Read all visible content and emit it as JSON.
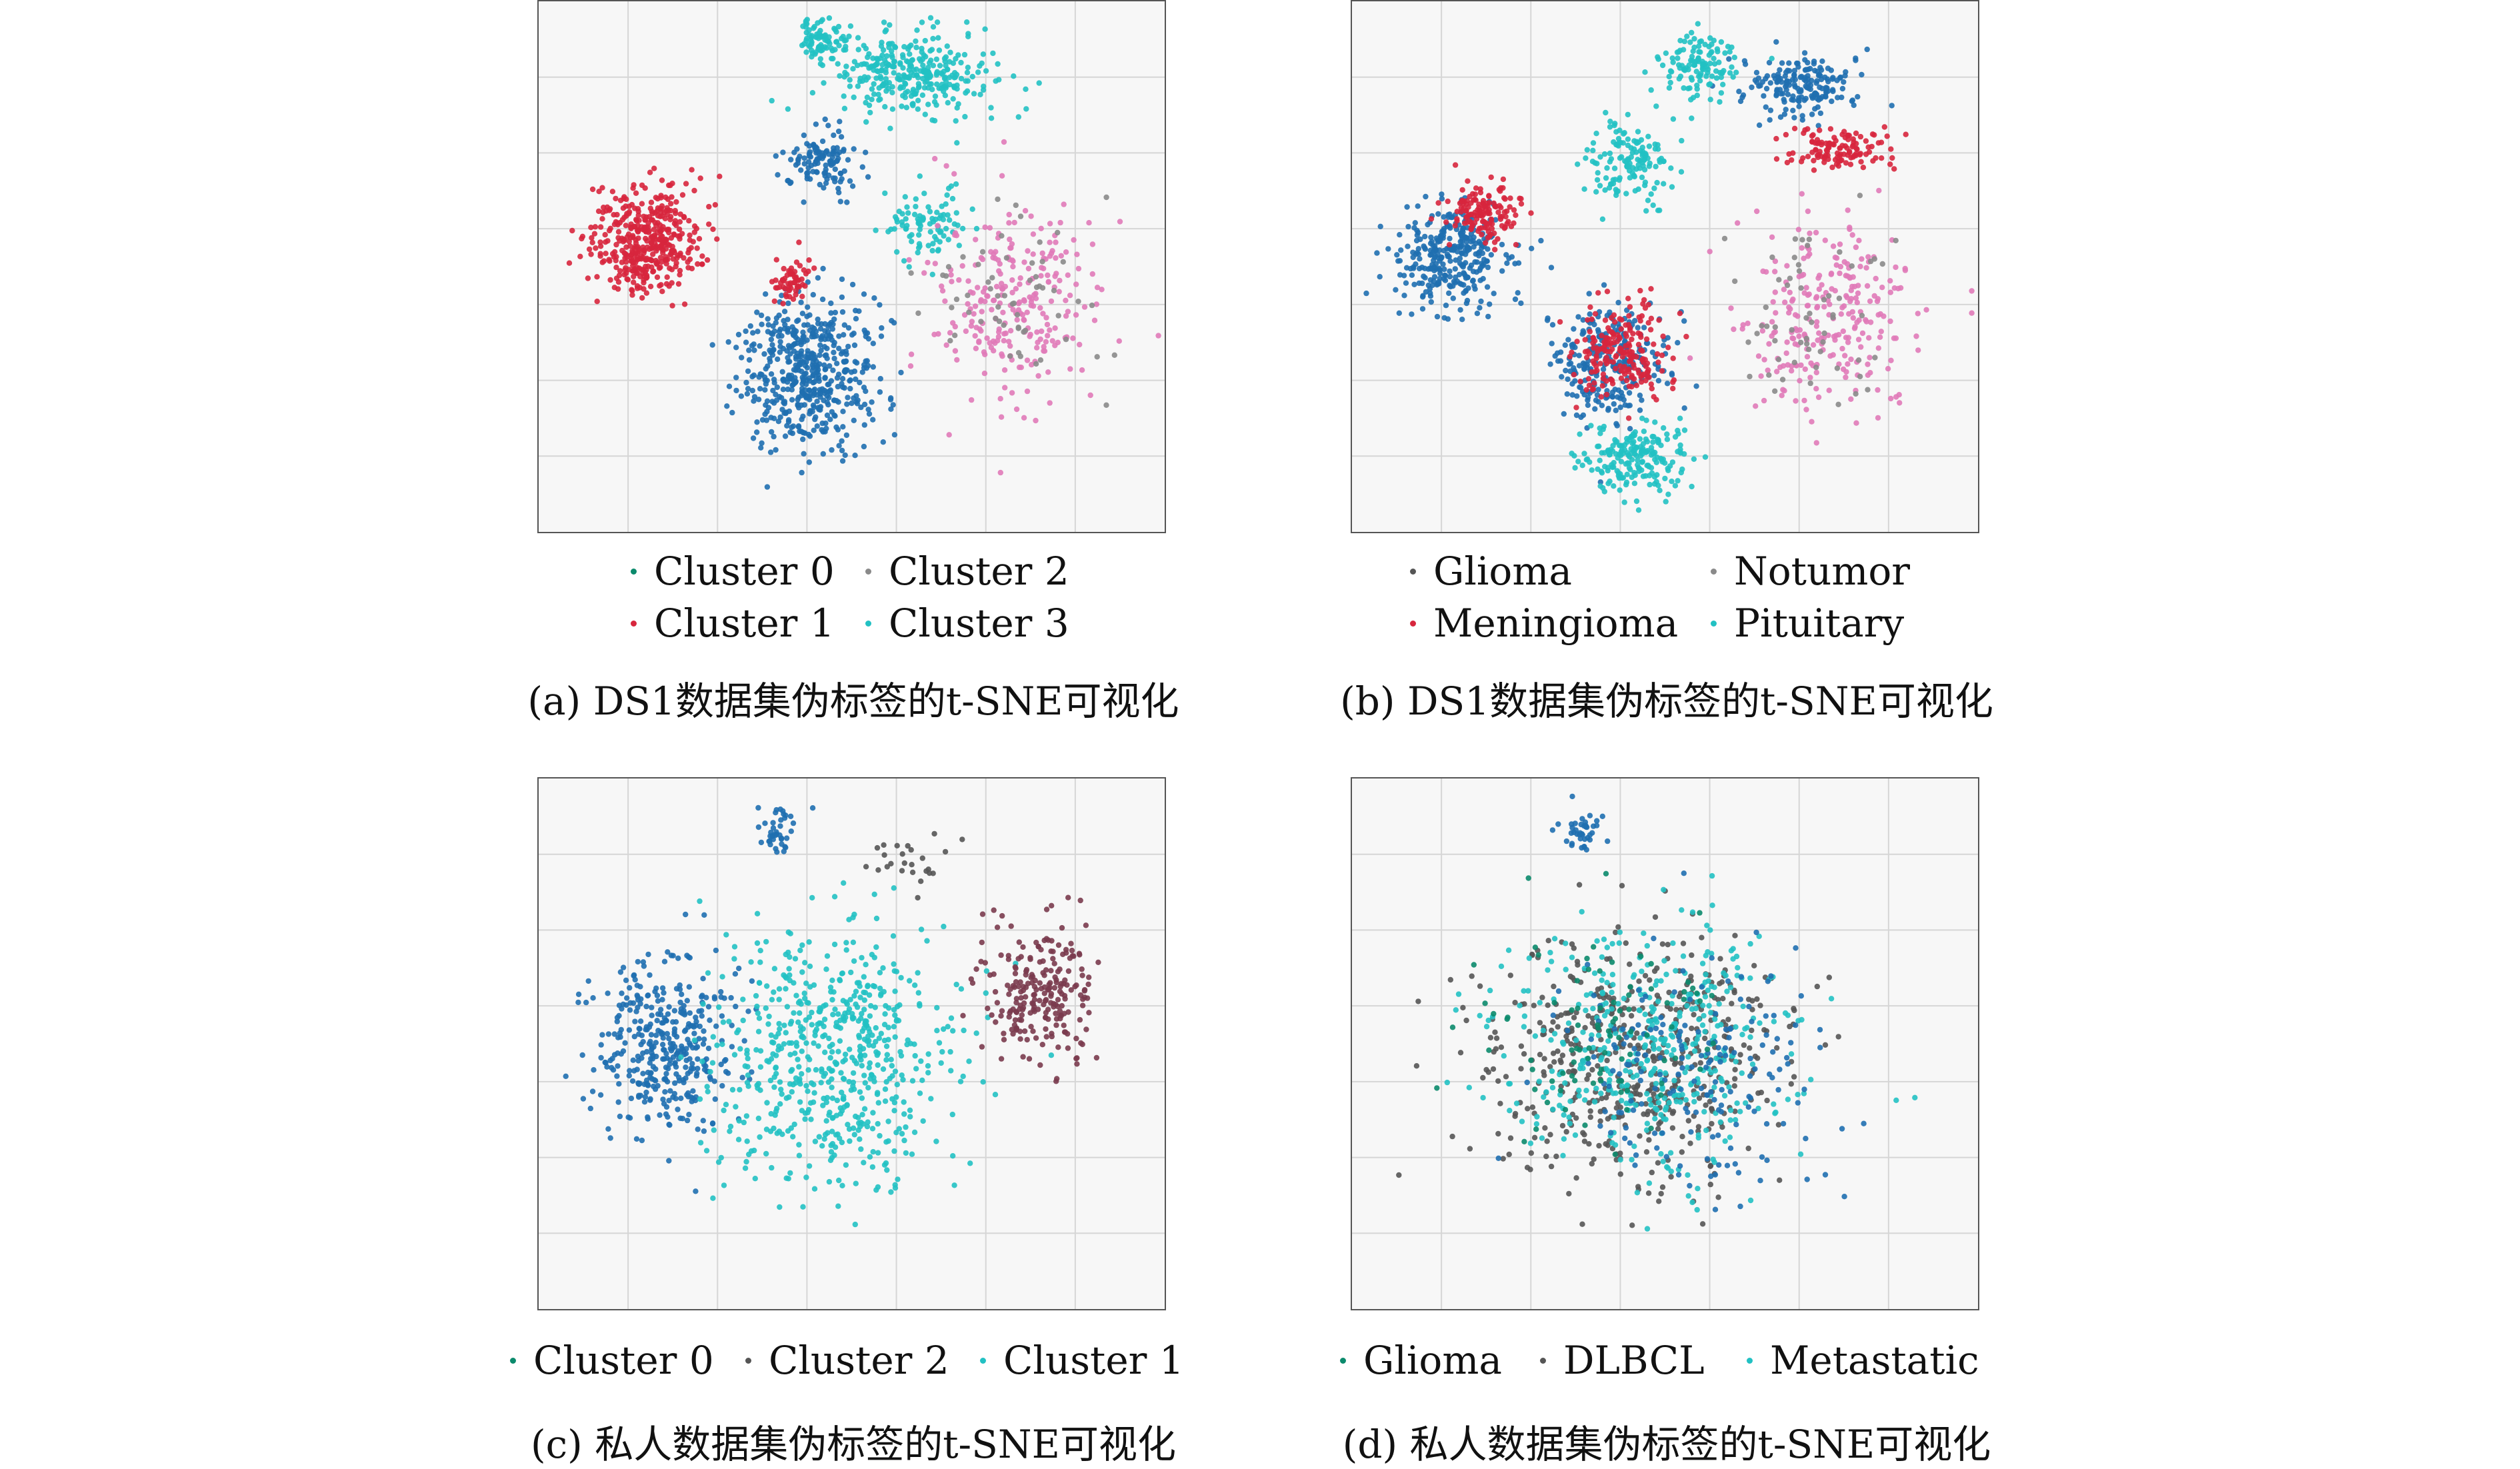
{
  "palette": {
    "dark_teal": "#0b8a6c",
    "red": "#d7263d",
    "gray": "#8a8a8a",
    "cyan": "#22c1c3",
    "blue": "#1f6fb0",
    "pink": "#e07ab8",
    "maroon": "#7a3b4e",
    "grid": "#d6d6d6",
    "plot_bg": "#f7f7f7"
  },
  "chart_data": [
    {
      "panel": "a",
      "type": "scatter",
      "caption": "(a) DS1数据集伪标签的t-SNE可视化",
      "legend": [
        {
          "label": "Cluster 0",
          "color": "#0b8a6c"
        },
        {
          "label": "Cluster 2",
          "color": "#8a8a8a"
        },
        {
          "label": "Cluster 1",
          "color": "#d7263d"
        },
        {
          "label": "Cluster 3",
          "color": "#22c1c3"
        }
      ],
      "legend_layout": "2x2 below plot",
      "grid": true,
      "xlim": [
        0,
        100
      ],
      "ylim": [
        0,
        100
      ],
      "clusters": [
        {
          "color": "#d7263d",
          "cx": 17,
          "cy": 55,
          "rx": 8,
          "ry": 9,
          "n": 420
        },
        {
          "color": "#1f6fb0",
          "cx": 43,
          "cy": 30,
          "rx": 10,
          "ry": 13,
          "n": 520
        },
        {
          "color": "#1f6fb0",
          "cx": 45,
          "cy": 70,
          "rx": 5,
          "ry": 6,
          "n": 120
        },
        {
          "color": "#d7263d",
          "cx": 40,
          "cy": 47,
          "rx": 3,
          "ry": 4,
          "n": 60
        },
        {
          "color": "#22c1c3",
          "cx": 60,
          "cy": 86,
          "rx": 11,
          "ry": 7,
          "n": 320
        },
        {
          "color": "#22c1c3",
          "cx": 45,
          "cy": 93,
          "rx": 4,
          "ry": 4,
          "n": 80
        },
        {
          "color": "#22c1c3",
          "cx": 62,
          "cy": 58,
          "rx": 6,
          "ry": 6,
          "n": 90
        },
        {
          "color": "#e07ab8",
          "cx": 76,
          "cy": 42,
          "rx": 12,
          "ry": 17,
          "n": 260
        },
        {
          "color": "#8a8a8a",
          "cx": 75,
          "cy": 42,
          "rx": 12,
          "ry": 17,
          "n": 60
        }
      ]
    },
    {
      "panel": "b",
      "type": "scatter",
      "caption": "(b) DS1数据集伪标签的t-SNE可视化",
      "legend": [
        {
          "label": "Glioma",
          "color": "#555555"
        },
        {
          "label": "Notumor",
          "color": "#8a8a8a"
        },
        {
          "label": "Meningioma",
          "color": "#d7263d"
        },
        {
          "label": "Pituitary",
          "color": "#22c1c3"
        }
      ],
      "legend_layout": "2x2 below plot",
      "grid": true,
      "xlim": [
        0,
        100
      ],
      "ylim": [
        0,
        100
      ],
      "clusters": [
        {
          "color": "#1f6fb0",
          "cx": 16,
          "cy": 52,
          "rx": 8,
          "ry": 9,
          "n": 320
        },
        {
          "color": "#d7263d",
          "cx": 21,
          "cy": 60,
          "rx": 5,
          "ry": 5,
          "n": 140
        },
        {
          "color": "#1f6fb0",
          "cx": 41,
          "cy": 32,
          "rx": 8,
          "ry": 10,
          "n": 260
        },
        {
          "color": "#d7263d",
          "cx": 43,
          "cy": 34,
          "rx": 7,
          "ry": 9,
          "n": 200
        },
        {
          "color": "#22c1c3",
          "cx": 45,
          "cy": 14,
          "rx": 8,
          "ry": 6,
          "n": 200
        },
        {
          "color": "#22c1c3",
          "cx": 44,
          "cy": 70,
          "rx": 6,
          "ry": 7,
          "n": 140
        },
        {
          "color": "#1f6fb0",
          "cx": 72,
          "cy": 84,
          "rx": 8,
          "ry": 5,
          "n": 180
        },
        {
          "color": "#d7263d",
          "cx": 78,
          "cy": 72,
          "rx": 7,
          "ry": 4,
          "n": 120
        },
        {
          "color": "#22c1c3",
          "cx": 55,
          "cy": 88,
          "rx": 6,
          "ry": 6,
          "n": 120
        },
        {
          "color": "#e07ab8",
          "cx": 76,
          "cy": 40,
          "rx": 12,
          "ry": 16,
          "n": 260
        },
        {
          "color": "#8a8a8a",
          "cx": 75,
          "cy": 40,
          "rx": 12,
          "ry": 16,
          "n": 60
        }
      ]
    },
    {
      "panel": "c",
      "type": "scatter",
      "caption": "(c) 私人数据集伪标签的t-SNE可视化",
      "legend": [
        {
          "label": "Cluster 0",
          "color": "#0b8a6c"
        },
        {
          "label": "Cluster 2",
          "color": "#555555"
        },
        {
          "label": "Cluster 1",
          "color": "#22c1c3"
        }
      ],
      "legend_layout": "1 row below plot",
      "grid": true,
      "xlim": [
        0,
        100
      ],
      "ylim": [
        0,
        100
      ],
      "clusters": [
        {
          "color": "#1f6fb0",
          "cx": 20,
          "cy": 50,
          "rx": 10,
          "ry": 15,
          "n": 380
        },
        {
          "color": "#22c1c3",
          "cx": 47,
          "cy": 48,
          "rx": 18,
          "ry": 22,
          "n": 620
        },
        {
          "color": "#7a3b4e",
          "cx": 80,
          "cy": 60,
          "rx": 8,
          "ry": 12,
          "n": 230
        },
        {
          "color": "#1f6fb0",
          "cx": 38,
          "cy": 90,
          "rx": 3,
          "ry": 4,
          "n": 40
        },
        {
          "color": "#555555",
          "cx": 60,
          "cy": 85,
          "rx": 6,
          "ry": 5,
          "n": 25
        }
      ]
    },
    {
      "panel": "d",
      "type": "scatter",
      "caption": "(d) 私人数据集伪标签的t-SNE可视化",
      "legend": [
        {
          "label": "Glioma",
          "color": "#0b8a6c"
        },
        {
          "label": "DLBCL",
          "color": "#555555"
        },
        {
          "label": "Metastatic",
          "color": "#22c1c3"
        }
      ],
      "legend_layout": "1 row below plot",
      "grid": true,
      "xlim": [
        0,
        100
      ],
      "ylim": [
        0,
        100
      ],
      "clusters": [
        {
          "color": "#555555",
          "cx": 46,
          "cy": 48,
          "rx": 22,
          "ry": 22,
          "n": 520
        },
        {
          "color": "#22c1c3",
          "cx": 48,
          "cy": 48,
          "rx": 22,
          "ry": 22,
          "n": 420
        },
        {
          "color": "#1f6fb0",
          "cx": 55,
          "cy": 45,
          "rx": 20,
          "ry": 20,
          "n": 180
        },
        {
          "color": "#0b8a6c",
          "cx": 40,
          "cy": 50,
          "rx": 18,
          "ry": 18,
          "n": 90
        },
        {
          "color": "#1f6fb0",
          "cx": 37,
          "cy": 90,
          "rx": 3,
          "ry": 4,
          "n": 40
        }
      ]
    }
  ]
}
